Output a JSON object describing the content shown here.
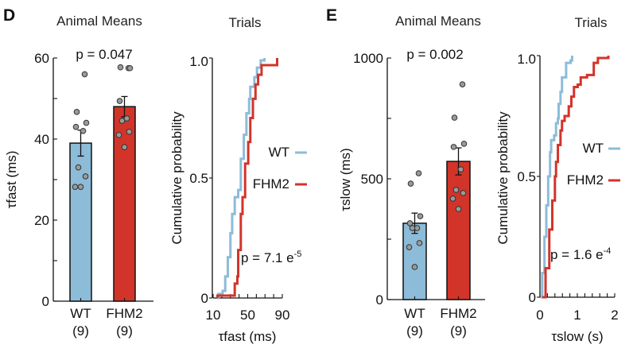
{
  "colors": {
    "wt": "#8dbcd8",
    "fhm2": "#d2342a",
    "dot": "#9a9a9a"
  },
  "chart_data": [
    {
      "id": "D-means",
      "panel_letter": "D",
      "type": "bar",
      "title": "Animal Means",
      "annotation": "p = 0.047",
      "ylabel": "τfast (ms)",
      "xlabel": "",
      "ylim": [
        0,
        60
      ],
      "yticks": [
        0,
        20,
        40,
        60
      ],
      "yminor_ticks": [
        10,
        30,
        50
      ],
      "ytick_labels": [
        "0",
        "20",
        "40",
        "60"
      ],
      "categories": [
        "WT",
        "FHM2"
      ],
      "category_counts": [
        "(9)",
        "(9)"
      ],
      "values": [
        39,
        48
      ],
      "sem": [
        3.2,
        2.5
      ],
      "points": [
        [
          56,
          46.7,
          44,
          43,
          42,
          33,
          30.8,
          28.2,
          28.2
        ],
        [
          57.5,
          57.7,
          57.5,
          49.4,
          45.1,
          44.5,
          41.8,
          41,
          38
        ]
      ],
      "grid": false
    },
    {
      "id": "D-trials",
      "type": "line",
      "subtype": "cumulative-step",
      "title": "Trials",
      "annotation": "p = 7.1 e",
      "annotation_exp": "-5",
      "ylabel": "Cumulative probability",
      "xlabel": "τfast (ms)",
      "xlim": [
        10,
        90
      ],
      "ylim": [
        0,
        1
      ],
      "xticks_major": [
        10,
        50,
        90
      ],
      "xtick_labels": [
        "10",
        "50",
        "90"
      ],
      "xticks_minor_step": 10,
      "yticks": [
        0,
        0.5,
        1
      ],
      "ytick_labels": [
        "0",
        "0.5",
        "1.0"
      ],
      "legend": [
        "WT",
        "FHM2"
      ],
      "legend_position": "center-right",
      "series": [
        {
          "name": "WT",
          "x": [
            15,
            16,
            21,
            24,
            27,
            30,
            32,
            35,
            39,
            42,
            45.5,
            48.5,
            51.6,
            53,
            57.7,
            60.7,
            65,
            69.4
          ],
          "y": [
            0,
            0.017,
            0.03,
            0.09,
            0.17,
            0.27,
            0.35,
            0.42,
            0.45,
            0.58,
            0.68,
            0.77,
            0.83,
            0.88,
            0.92,
            0.96,
            0.99,
            1.0
          ]
        },
        {
          "name": "FHM2",
          "x": [
            15,
            30,
            35,
            38,
            39,
            42,
            44,
            47,
            50.6,
            53,
            56,
            59,
            62,
            66,
            84,
            84
          ],
          "y": [
            0.01,
            0.01,
            0.06,
            0.09,
            0.2,
            0.35,
            0.42,
            0.56,
            0.65,
            0.75,
            0.83,
            0.89,
            0.93,
            0.97,
            0.97,
            1.0
          ]
        }
      ]
    },
    {
      "id": "E-means",
      "panel_letter": "E",
      "type": "bar",
      "title": "Animal Means",
      "annotation": "p = 0.002",
      "ylabel": "τslow (ms)",
      "xlabel": "",
      "ylim": [
        0,
        1000
      ],
      "yticks": [
        0,
        500,
        1000
      ],
      "yminor_ticks": [
        250,
        750
      ],
      "ytick_labels": [
        "0",
        "500",
        "1000"
      ],
      "categories": [
        "WT",
        "FHM2"
      ],
      "category_counts": [
        "(9)",
        "(9)"
      ],
      "values": [
        316,
        572
      ],
      "sem": [
        42,
        56
      ],
      "points": [
        [
          523,
          480,
          345,
          316,
          296,
          296,
          234,
          217,
          135
        ],
        [
          891,
          753,
          645,
          632,
          539,
          454,
          441,
          418,
          375
        ]
      ],
      "grid": false
    },
    {
      "id": "E-trials",
      "type": "line",
      "subtype": "cumulative-step",
      "title": "Trials",
      "annotation": "p = 1.6 e",
      "annotation_exp": "-4",
      "ylabel": "Cumulative probability",
      "xlabel": "τslow (s)",
      "xlim": [
        0,
        2
      ],
      "ylim": [
        0,
        1
      ],
      "xticks_major": [
        0,
        1,
        2
      ],
      "xtick_labels": [
        "0",
        "1",
        "2"
      ],
      "xticks_minor_step": 0.2,
      "yticks": [
        0,
        0.5,
        1
      ],
      "ytick_labels": [
        "0",
        "0.5",
        "1.0"
      ],
      "legend": [
        "WT",
        "FHM2"
      ],
      "legend_position": "center-right",
      "series": [
        {
          "name": "WT",
          "x": [
            0.01,
            0.06,
            0.12,
            0.17,
            0.22,
            0.27,
            0.3,
            0.38,
            0.43,
            0.48,
            0.5,
            0.55,
            0.59,
            0.64,
            0.7,
            0.82,
            0.86
          ],
          "y": [
            0,
            0.1,
            0.25,
            0.38,
            0.5,
            0.6,
            0.65,
            0.67,
            0.72,
            0.74,
            0.8,
            0.85,
            0.91,
            0.91,
            0.97,
            0.98,
            1.0
          ]
        },
        {
          "name": "FHM2",
          "x": [
            0.06,
            0.15,
            0.25,
            0.33,
            0.4,
            0.43,
            0.48,
            0.55,
            0.59,
            0.66,
            0.77,
            0.84,
            0.91,
            1.01,
            1.09,
            1.26,
            1.37,
            1.44,
            1.55,
            1.83
          ],
          "y": [
            0,
            0.12,
            0.28,
            0.4,
            0.5,
            0.56,
            0.63,
            0.69,
            0.73,
            0.75,
            0.79,
            0.83,
            0.87,
            0.88,
            0.91,
            0.92,
            0.92,
            0.97,
            0.99,
            1.0
          ]
        }
      ]
    }
  ]
}
